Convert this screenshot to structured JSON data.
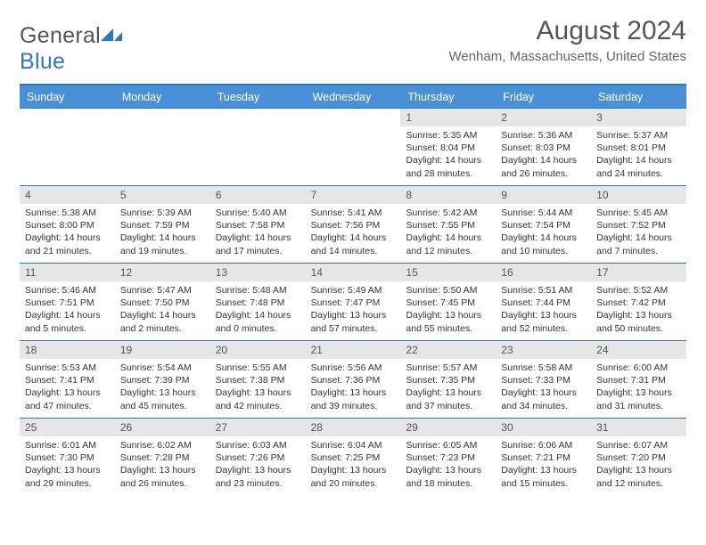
{
  "logo": {
    "word1": "General",
    "word2": "Blue"
  },
  "title": "August 2024",
  "location": "Wenham, Massachusetts, United States",
  "colors": {
    "header_bg": "#4a90d9",
    "header_border": "#2e78bd",
    "daynum_bg": "#e6e6e6",
    "text": "#333333",
    "subtext": "#666666"
  },
  "dow": [
    "Sunday",
    "Monday",
    "Tuesday",
    "Wednesday",
    "Thursday",
    "Friday",
    "Saturday"
  ],
  "weeks": [
    [
      {
        "n": "",
        "sr": "",
        "ss": "",
        "dl": ""
      },
      {
        "n": "",
        "sr": "",
        "ss": "",
        "dl": ""
      },
      {
        "n": "",
        "sr": "",
        "ss": "",
        "dl": ""
      },
      {
        "n": "",
        "sr": "",
        "ss": "",
        "dl": ""
      },
      {
        "n": "1",
        "sr": "Sunrise: 5:35 AM",
        "ss": "Sunset: 8:04 PM",
        "dl": "Daylight: 14 hours and 28 minutes."
      },
      {
        "n": "2",
        "sr": "Sunrise: 5:36 AM",
        "ss": "Sunset: 8:03 PM",
        "dl": "Daylight: 14 hours and 26 minutes."
      },
      {
        "n": "3",
        "sr": "Sunrise: 5:37 AM",
        "ss": "Sunset: 8:01 PM",
        "dl": "Daylight: 14 hours and 24 minutes."
      }
    ],
    [
      {
        "n": "4",
        "sr": "Sunrise: 5:38 AM",
        "ss": "Sunset: 8:00 PM",
        "dl": "Daylight: 14 hours and 21 minutes."
      },
      {
        "n": "5",
        "sr": "Sunrise: 5:39 AM",
        "ss": "Sunset: 7:59 PM",
        "dl": "Daylight: 14 hours and 19 minutes."
      },
      {
        "n": "6",
        "sr": "Sunrise: 5:40 AM",
        "ss": "Sunset: 7:58 PM",
        "dl": "Daylight: 14 hours and 17 minutes."
      },
      {
        "n": "7",
        "sr": "Sunrise: 5:41 AM",
        "ss": "Sunset: 7:56 PM",
        "dl": "Daylight: 14 hours and 14 minutes."
      },
      {
        "n": "8",
        "sr": "Sunrise: 5:42 AM",
        "ss": "Sunset: 7:55 PM",
        "dl": "Daylight: 14 hours and 12 minutes."
      },
      {
        "n": "9",
        "sr": "Sunrise: 5:44 AM",
        "ss": "Sunset: 7:54 PM",
        "dl": "Daylight: 14 hours and 10 minutes."
      },
      {
        "n": "10",
        "sr": "Sunrise: 5:45 AM",
        "ss": "Sunset: 7:52 PM",
        "dl": "Daylight: 14 hours and 7 minutes."
      }
    ],
    [
      {
        "n": "11",
        "sr": "Sunrise: 5:46 AM",
        "ss": "Sunset: 7:51 PM",
        "dl": "Daylight: 14 hours and 5 minutes."
      },
      {
        "n": "12",
        "sr": "Sunrise: 5:47 AM",
        "ss": "Sunset: 7:50 PM",
        "dl": "Daylight: 14 hours and 2 minutes."
      },
      {
        "n": "13",
        "sr": "Sunrise: 5:48 AM",
        "ss": "Sunset: 7:48 PM",
        "dl": "Daylight: 14 hours and 0 minutes."
      },
      {
        "n": "14",
        "sr": "Sunrise: 5:49 AM",
        "ss": "Sunset: 7:47 PM",
        "dl": "Daylight: 13 hours and 57 minutes."
      },
      {
        "n": "15",
        "sr": "Sunrise: 5:50 AM",
        "ss": "Sunset: 7:45 PM",
        "dl": "Daylight: 13 hours and 55 minutes."
      },
      {
        "n": "16",
        "sr": "Sunrise: 5:51 AM",
        "ss": "Sunset: 7:44 PM",
        "dl": "Daylight: 13 hours and 52 minutes."
      },
      {
        "n": "17",
        "sr": "Sunrise: 5:52 AM",
        "ss": "Sunset: 7:42 PM",
        "dl": "Daylight: 13 hours and 50 minutes."
      }
    ],
    [
      {
        "n": "18",
        "sr": "Sunrise: 5:53 AM",
        "ss": "Sunset: 7:41 PM",
        "dl": "Daylight: 13 hours and 47 minutes."
      },
      {
        "n": "19",
        "sr": "Sunrise: 5:54 AM",
        "ss": "Sunset: 7:39 PM",
        "dl": "Daylight: 13 hours and 45 minutes."
      },
      {
        "n": "20",
        "sr": "Sunrise: 5:55 AM",
        "ss": "Sunset: 7:38 PM",
        "dl": "Daylight: 13 hours and 42 minutes."
      },
      {
        "n": "21",
        "sr": "Sunrise: 5:56 AM",
        "ss": "Sunset: 7:36 PM",
        "dl": "Daylight: 13 hours and 39 minutes."
      },
      {
        "n": "22",
        "sr": "Sunrise: 5:57 AM",
        "ss": "Sunset: 7:35 PM",
        "dl": "Daylight: 13 hours and 37 minutes."
      },
      {
        "n": "23",
        "sr": "Sunrise: 5:58 AM",
        "ss": "Sunset: 7:33 PM",
        "dl": "Daylight: 13 hours and 34 minutes."
      },
      {
        "n": "24",
        "sr": "Sunrise: 6:00 AM",
        "ss": "Sunset: 7:31 PM",
        "dl": "Daylight: 13 hours and 31 minutes."
      }
    ],
    [
      {
        "n": "25",
        "sr": "Sunrise: 6:01 AM",
        "ss": "Sunset: 7:30 PM",
        "dl": "Daylight: 13 hours and 29 minutes."
      },
      {
        "n": "26",
        "sr": "Sunrise: 6:02 AM",
        "ss": "Sunset: 7:28 PM",
        "dl": "Daylight: 13 hours and 26 minutes."
      },
      {
        "n": "27",
        "sr": "Sunrise: 6:03 AM",
        "ss": "Sunset: 7:26 PM",
        "dl": "Daylight: 13 hours and 23 minutes."
      },
      {
        "n": "28",
        "sr": "Sunrise: 6:04 AM",
        "ss": "Sunset: 7:25 PM",
        "dl": "Daylight: 13 hours and 20 minutes."
      },
      {
        "n": "29",
        "sr": "Sunrise: 6:05 AM",
        "ss": "Sunset: 7:23 PM",
        "dl": "Daylight: 13 hours and 18 minutes."
      },
      {
        "n": "30",
        "sr": "Sunrise: 6:06 AM",
        "ss": "Sunset: 7:21 PM",
        "dl": "Daylight: 13 hours and 15 minutes."
      },
      {
        "n": "31",
        "sr": "Sunrise: 6:07 AM",
        "ss": "Sunset: 7:20 PM",
        "dl": "Daylight: 13 hours and 12 minutes."
      }
    ]
  ]
}
